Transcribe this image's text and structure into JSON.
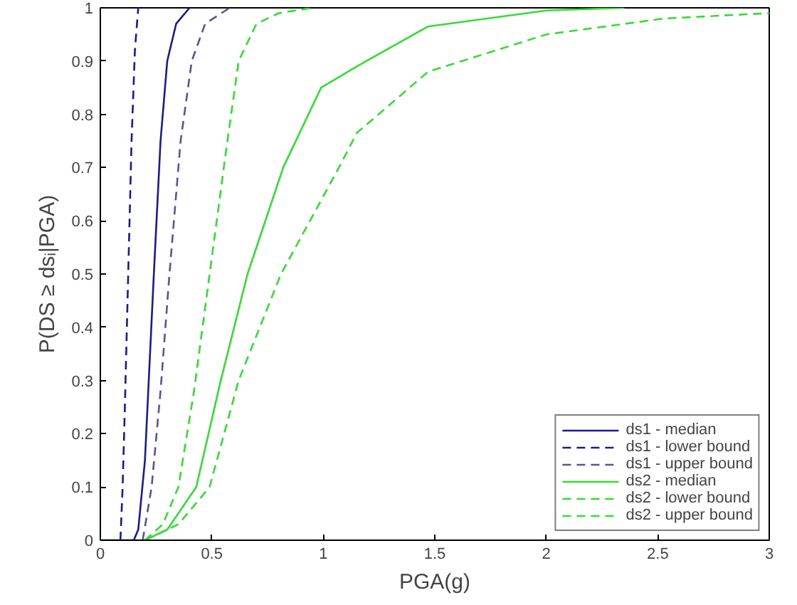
{
  "chart_data": {
    "type": "line",
    "xlabel": "PGA(g)",
    "ylabel": "P(DS ≥ dsᵢ|PGA)",
    "xlim": [
      0,
      3
    ],
    "ylim": [
      0,
      1
    ],
    "xticks": [
      0,
      0.5,
      1,
      1.5,
      2,
      2.5,
      3
    ],
    "yticks": [
      0,
      0.1,
      0.2,
      0.3,
      0.4,
      0.5,
      0.6,
      0.7,
      0.8,
      0.9,
      1
    ],
    "grid": false,
    "legend": "bottom right",
    "marker": "none",
    "series": [
      {
        "name": "ds1 - median",
        "color": "#1a1a99",
        "line_style": "solid",
        "x": [
          0,
          0.15,
          0.17,
          0.2,
          0.24,
          0.27,
          0.3,
          0.34,
          0.4
        ],
        "values": [
          0,
          0,
          0.02,
          0.15,
          0.5,
          0.75,
          0.9,
          0.97,
          1
        ]
      },
      {
        "name": "ds1 - lower bound",
        "color": "#1a1a99",
        "line_style": "dashed",
        "x": [
          0.09,
          0.1,
          0.11,
          0.125,
          0.14,
          0.155,
          0.17
        ],
        "values": [
          0,
          0.1,
          0.25,
          0.5,
          0.75,
          0.92,
          1
        ]
      },
      {
        "name": "ds1 - upper bound",
        "color": "#555599",
        "line_style": "dashed",
        "x": [
          0.19,
          0.23,
          0.27,
          0.31,
          0.36,
          0.41,
          0.47,
          0.58
        ],
        "values": [
          0,
          0.1,
          0.28,
          0.5,
          0.75,
          0.9,
          0.97,
          1
        ]
      },
      {
        "name": "ds2 - median",
        "color": "#33dd33",
        "line_style": "solid",
        "x": [
          0,
          0.2,
          0.3,
          0.43,
          0.54,
          0.66,
          0.82,
          0.99,
          1.15,
          1.47,
          2.0,
          2.35
        ],
        "values": [
          0,
          0,
          0.02,
          0.1,
          0.3,
          0.5,
          0.7,
          0.85,
          0.89,
          0.965,
          0.995,
          1
        ]
      },
      {
        "name": "ds2 - lower bound",
        "color": "#33dd33",
        "line_style": "dashed",
        "x": [
          0.2,
          0.28,
          0.35,
          0.42,
          0.49,
          0.56,
          0.62,
          0.7,
          0.8,
          0.95
        ],
        "values": [
          0,
          0.03,
          0.1,
          0.28,
          0.5,
          0.72,
          0.9,
          0.97,
          0.99,
          1
        ]
      },
      {
        "name": "ds2 - upper bound",
        "color": "#33dd33",
        "line_style": "dashed",
        "x": [
          0.2,
          0.35,
          0.49,
          0.62,
          0.81,
          1.07,
          1.15,
          1.47,
          2.0,
          2.53,
          3.0
        ],
        "values": [
          0,
          0.03,
          0.1,
          0.3,
          0.5,
          0.7,
          0.765,
          0.88,
          0.95,
          0.98,
          0.99
        ]
      }
    ]
  }
}
